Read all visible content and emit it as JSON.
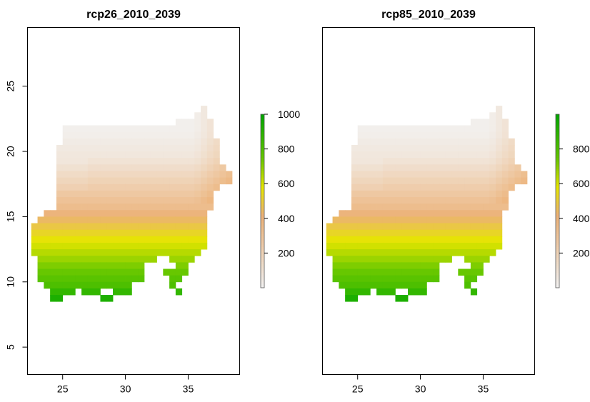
{
  "colors": {
    "ramp": [
      "#f2f2f2",
      "#ecb176",
      "#e6e600",
      "#63c600",
      "#00a600"
    ],
    "ramp_positions": [
      0,
      0.42,
      0.58,
      0.75,
      1
    ]
  },
  "chart_data": [
    {
      "type": "heatmap",
      "title": "rcp26_2010_2039",
      "xlabel": "",
      "ylabel": "",
      "xlim": [
        22.2,
        39.1
      ],
      "ylim": [
        2.9,
        29.5
      ],
      "xticks": [
        "25",
        "30",
        "35"
      ],
      "yticks": [
        "5",
        "10",
        "15",
        "20",
        "25"
      ],
      "legend": {
        "placement": "right",
        "range": [
          0,
          1000
        ],
        "ticks": [
          "200",
          "400",
          "600",
          "800",
          "1000"
        ]
      },
      "grid": false
    },
    {
      "type": "heatmap",
      "title": "rcp85_2010_2039",
      "xlabel": "",
      "ylabel": "",
      "xlim": [
        22.2,
        39.1
      ],
      "ylim": [
        2.9,
        29.5
      ],
      "xticks": [
        "25",
        "30",
        "35"
      ],
      "yticks": [],
      "legend": {
        "placement": "right",
        "range": [
          0,
          1000
        ],
        "ticks": [
          "200",
          "400",
          "600",
          "800"
        ]
      },
      "grid": false
    }
  ],
  "grid_data": {
    "cell_deg": 0.5,
    "lon_start": 22.0,
    "lat_top": 23.5,
    "rows": [
      [
        "r23.0",
        [
          [
            36.0,
            36.5
          ]
        ]
      ],
      [
        "r22.5",
        [
          [
            35.5,
            36.5
          ]
        ]
      ],
      [
        "r22.0",
        [
          [
            34.0,
            37.0
          ]
        ]
      ],
      [
        "r21.5",
        [
          [
            25.0,
            37.0
          ]
        ]
      ],
      [
        "r21.0",
        [
          [
            25.0,
            37.0
          ]
        ]
      ],
      [
        "r20.5",
        [
          [
            25.0,
            37.5
          ]
        ]
      ],
      [
        "r20.0",
        [
          [
            24.5,
            37.5
          ]
        ]
      ],
      [
        "r19.5",
        [
          [
            24.5,
            37.5
          ]
        ]
      ],
      [
        "r19.0",
        [
          [
            24.5,
            37.5
          ]
        ]
      ],
      [
        "r18.5",
        [
          [
            24.5,
            38.0
          ]
        ]
      ],
      [
        "r18.0",
        [
          [
            24.5,
            38.5
          ]
        ]
      ],
      [
        "r17.5",
        [
          [
            24.5,
            38.5
          ]
        ]
      ],
      [
        "r17.0",
        [
          [
            24.5,
            37.5
          ]
        ]
      ],
      [
        "r16.5",
        [
          [
            24.5,
            37.0
          ]
        ]
      ],
      [
        "r16.0",
        [
          [
            24.5,
            37.0
          ]
        ]
      ],
      [
        "r15.5",
        [
          [
            24.5,
            37.0
          ]
        ]
      ],
      [
        "r15.0",
        [
          [
            23.5,
            36.5
          ]
        ]
      ],
      [
        "r14.5",
        [
          [
            23.0,
            36.5
          ]
        ]
      ],
      [
        "r14.0",
        [
          [
            22.5,
            36.5
          ]
        ]
      ],
      [
        "r13.5",
        [
          [
            22.5,
            36.5
          ]
        ]
      ],
      [
        "r13.0",
        [
          [
            22.5,
            36.5
          ]
        ]
      ],
      [
        "r12.5",
        [
          [
            22.5,
            36.5
          ]
        ]
      ],
      [
        "r12.0",
        [
          [
            22.5,
            36.0
          ]
        ]
      ],
      [
        "r11.5",
        [
          [
            23.0,
            32.5
          ],
          [
            33.5,
            35.5
          ]
        ]
      ],
      [
        "r11.0",
        [
          [
            23.0,
            31.5
          ],
          [
            34.0,
            35.0
          ]
        ]
      ],
      [
        "r10.5",
        [
          [
            23.0,
            31.5
          ],
          [
            33.0,
            35.0
          ]
        ]
      ],
      [
        "r10.0",
        [
          [
            23.0,
            31.5
          ],
          [
            33.5,
            34.5
          ]
        ]
      ],
      [
        "r9.5",
        [
          [
            23.5,
            30.5
          ],
          [
            33.5,
            34.0
          ]
        ]
      ],
      [
        "r9.0",
        [
          [
            24.0,
            26.0
          ],
          [
            26.5,
            28.0
          ],
          [
            29.0,
            30.5
          ],
          [
            34.0,
            34.5
          ]
        ]
      ],
      [
        "r8.5",
        [
          [
            24.0,
            25.0
          ],
          [
            28.0,
            29.0
          ]
        ]
      ]
    ]
  }
}
